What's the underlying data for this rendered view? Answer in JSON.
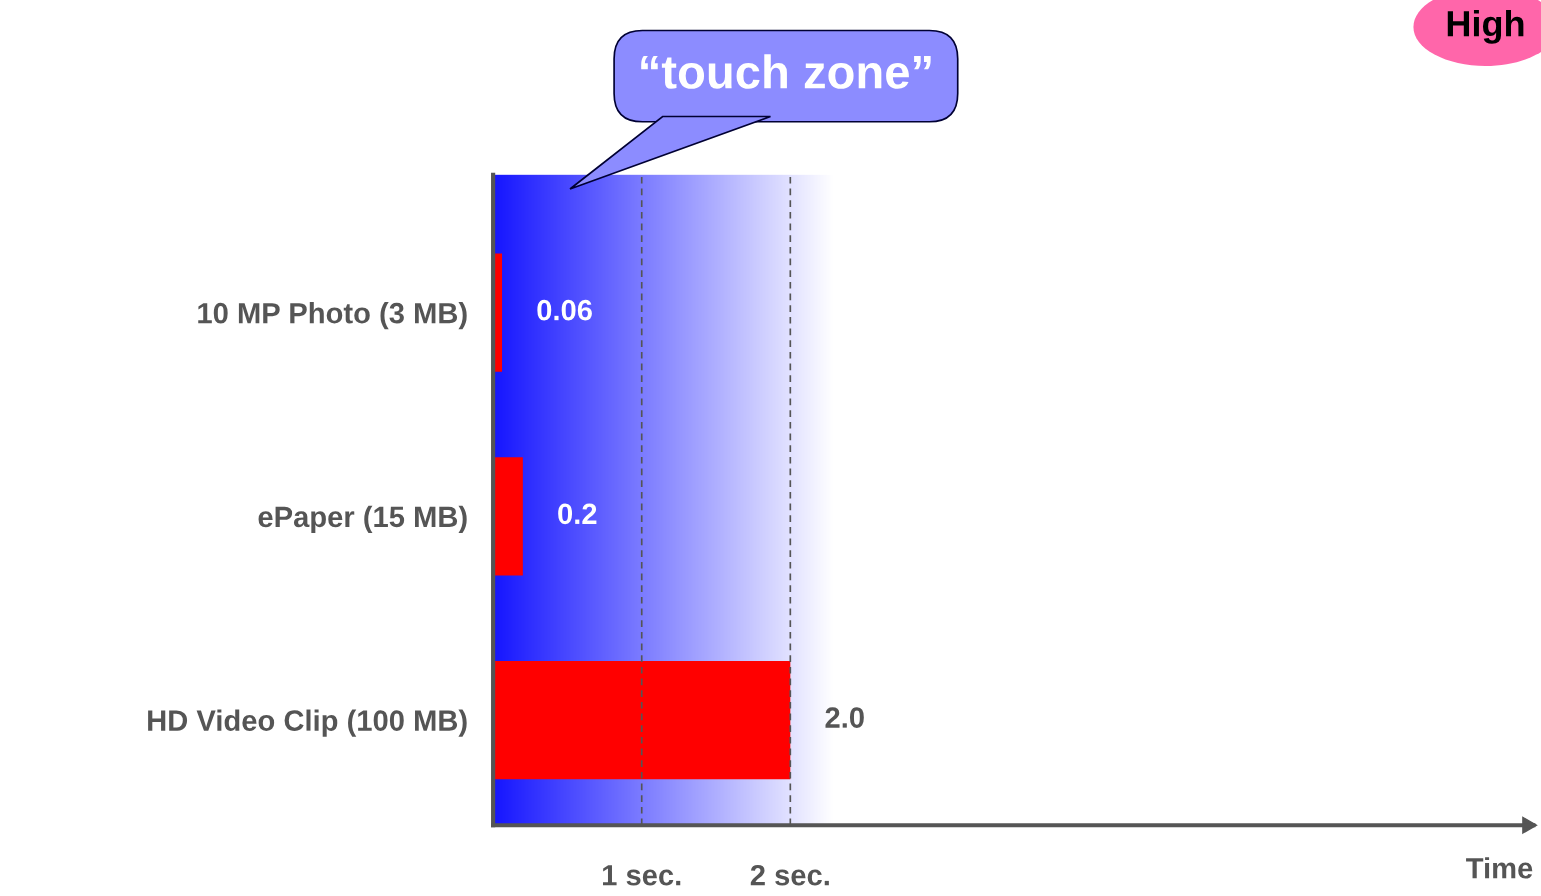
{
  "chart_data": {
    "type": "bar",
    "orientation": "horizontal",
    "categories": [
      "10 MP Photo (3 MB)",
      "ePaper (15 MB)",
      "HD Video Clip (100 MB)"
    ],
    "values": [
      0.06,
      0.2,
      2.0
    ],
    "value_labels": [
      "0.06",
      "0.2",
      "2.0"
    ],
    "color": "#ff0000",
    "xlabel": "Time",
    "xlim": [
      0,
      7
    ],
    "xticks": [
      {
        "value": 1,
        "label": "1 sec."
      },
      {
        "value": 2,
        "label": "2 sec."
      }
    ],
    "grid": "x",
    "bands": [
      {
        "axis": "x",
        "from": 0,
        "to": 2.3,
        "label": "“touch zone”",
        "color": "#0000ff"
      }
    ],
    "annotations": [
      "High"
    ]
  }
}
